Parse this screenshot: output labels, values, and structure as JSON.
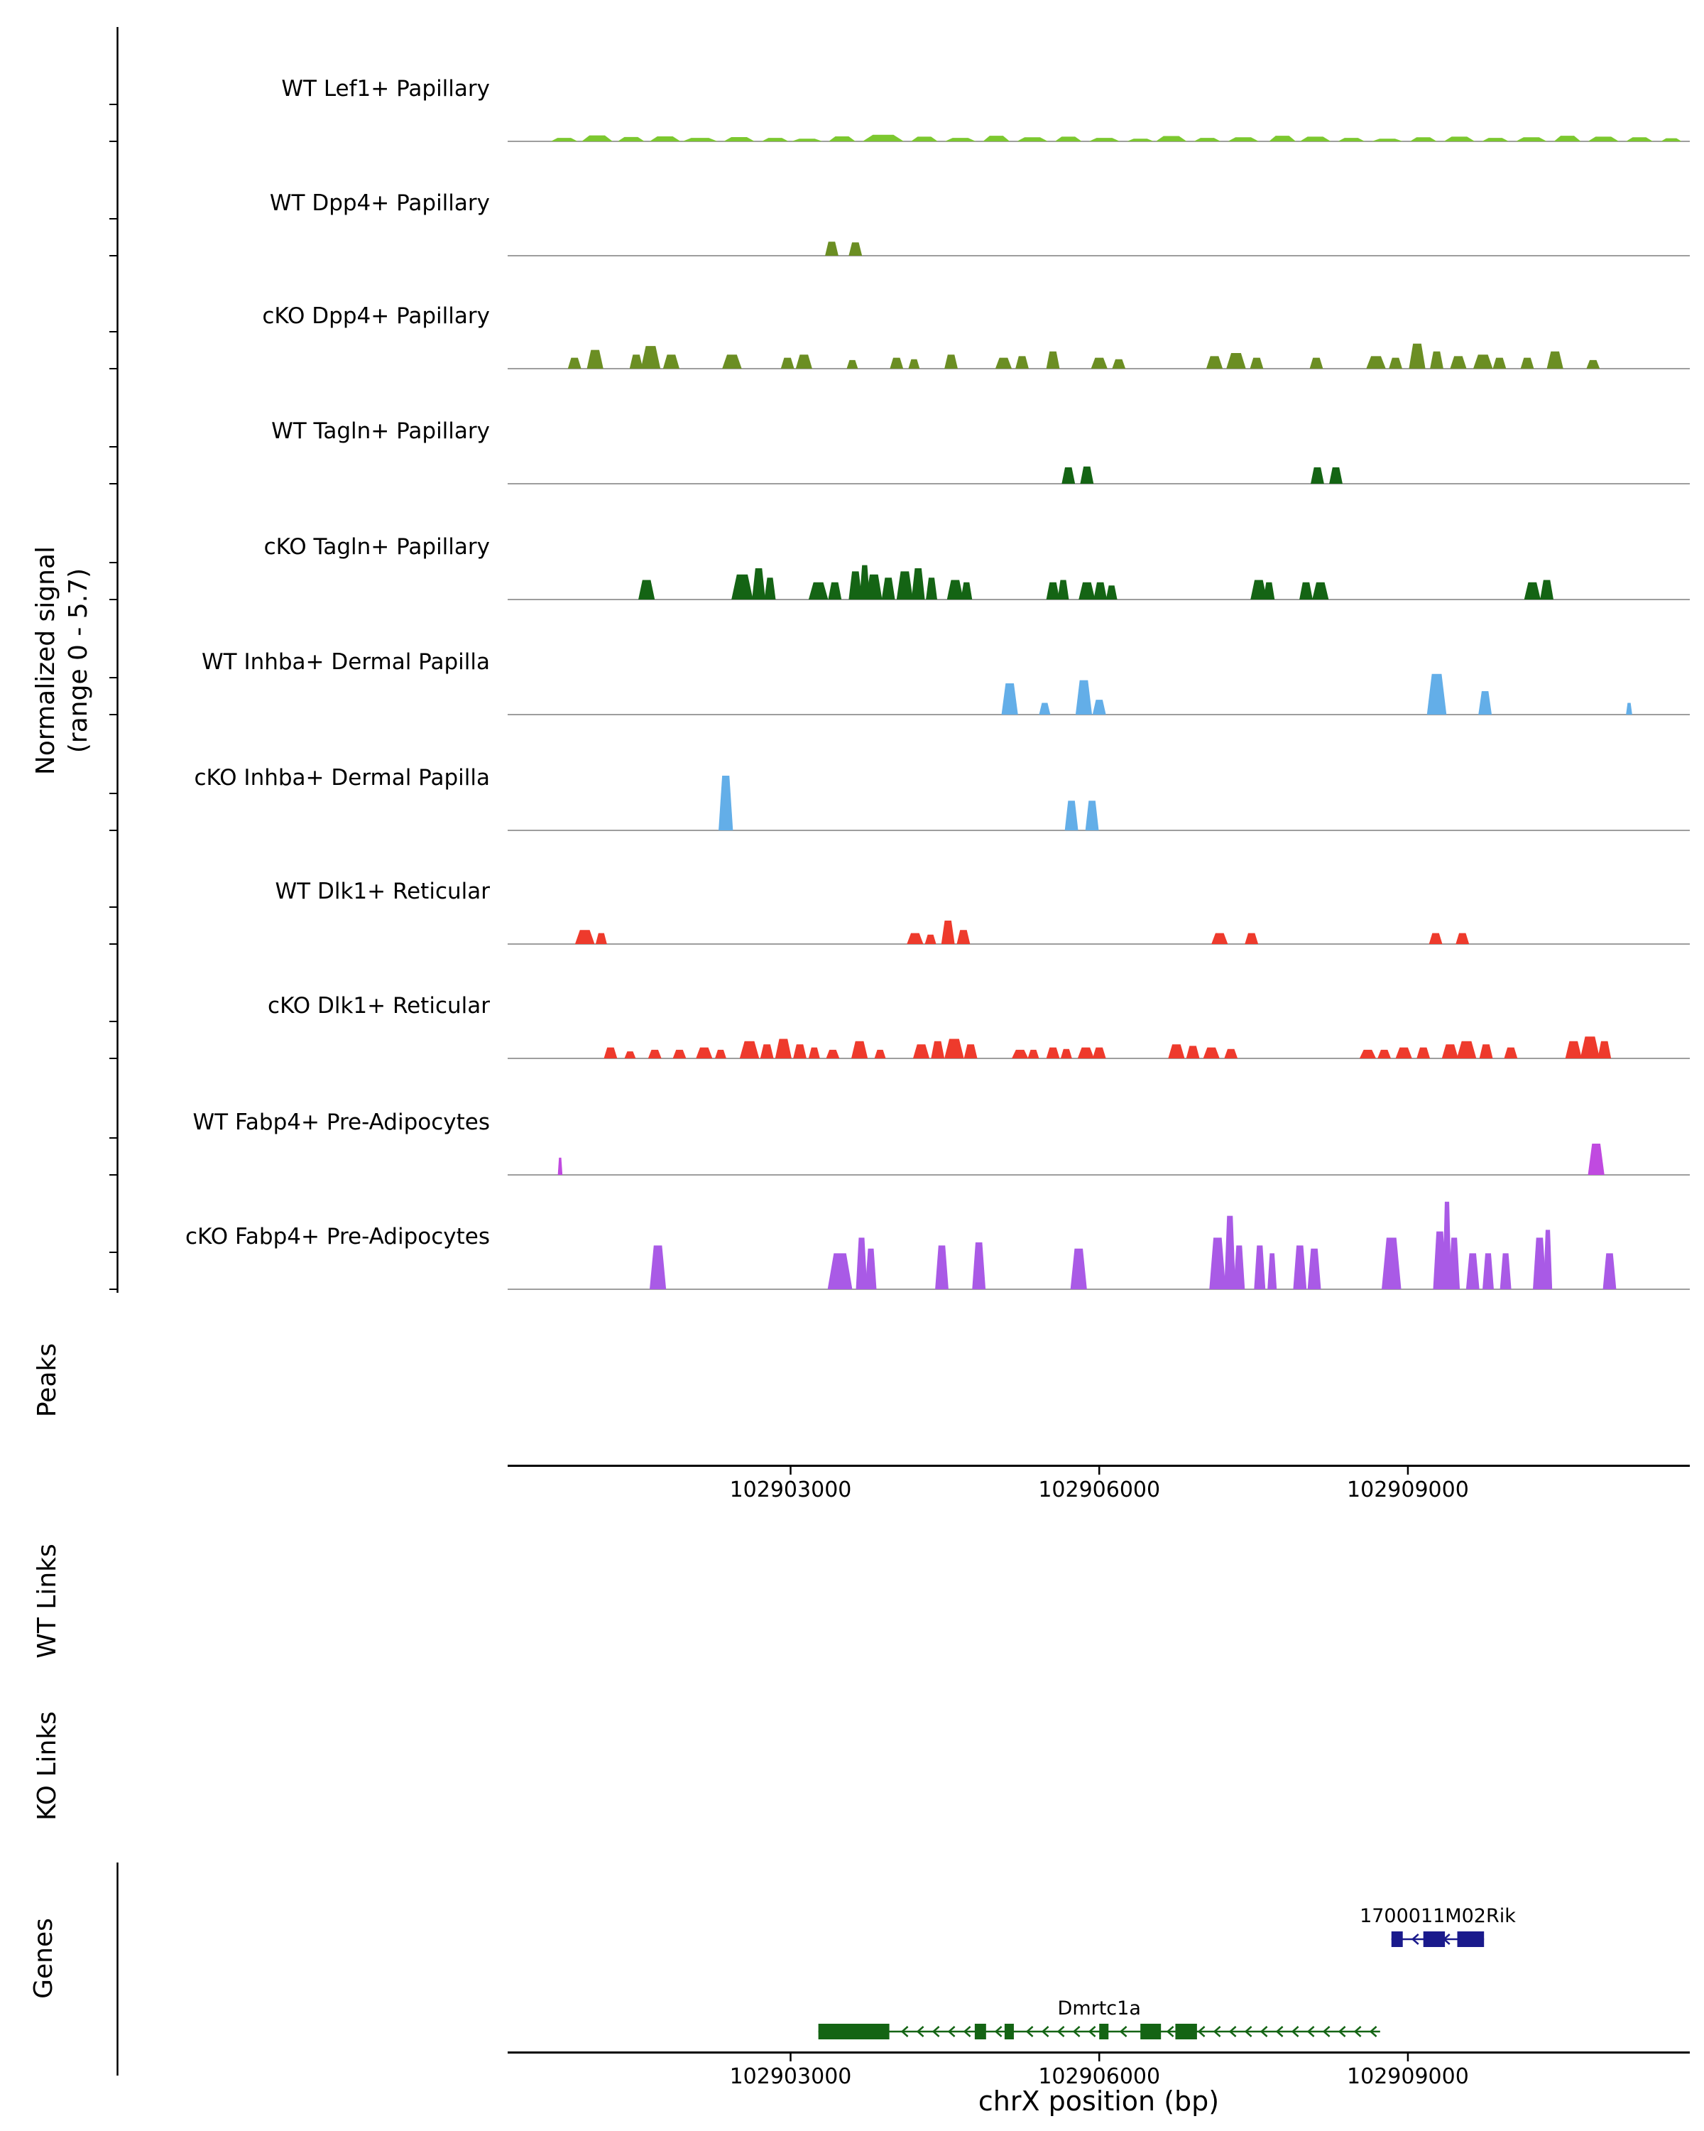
{
  "y_axis": {
    "line1": "Normalized signal",
    "line2": "(range 0 - 5.7)"
  },
  "sections": {
    "peaks": "Peaks",
    "wt_links": "WT Links",
    "ko_links": "KO Links",
    "genes": "Genes"
  },
  "x_axis": {
    "label": "chrX position (bp)"
  },
  "chart_data": {
    "type": "area",
    "title": "",
    "xlabel": "chrX position (bp)",
    "ylabel": "Normalized signal (range 0 - 5.7)",
    "x_range_bp": [
      102900250,
      102911740
    ],
    "x_ticks": [
      102903000,
      102906000,
      102909000
    ],
    "y_range": [
      0,
      5.7
    ],
    "peak_format": "[center_bp, width_bp, height_normalized]",
    "tracks": [
      {
        "label": "WT Lef1+ Papillary",
        "color": "#7cc82f",
        "peaks": [
          [
            102900800,
            260,
            0.22
          ],
          [
            102901120,
            300,
            0.38
          ],
          [
            102901450,
            260,
            0.28
          ],
          [
            102901780,
            300,
            0.32
          ],
          [
            102902120,
            340,
            0.22
          ],
          [
            102902500,
            300,
            0.27
          ],
          [
            102902850,
            260,
            0.22
          ],
          [
            102903160,
            300,
            0.17
          ],
          [
            102903500,
            260,
            0.32
          ],
          [
            102903900,
            400,
            0.42
          ],
          [
            102904300,
            260,
            0.3
          ],
          [
            102904650,
            300,
            0.22
          ],
          [
            102905000,
            260,
            0.36
          ],
          [
            102905350,
            300,
            0.26
          ],
          [
            102905700,
            260,
            0.3
          ],
          [
            102906050,
            300,
            0.22
          ],
          [
            102906400,
            260,
            0.17
          ],
          [
            102906700,
            300,
            0.34
          ],
          [
            102907050,
            260,
            0.22
          ],
          [
            102907400,
            300,
            0.26
          ],
          [
            102907780,
            260,
            0.36
          ],
          [
            102908100,
            300,
            0.3
          ],
          [
            102908450,
            260,
            0.22
          ],
          [
            102908800,
            300,
            0.17
          ],
          [
            102909150,
            260,
            0.26
          ],
          [
            102909500,
            300,
            0.3
          ],
          [
            102909850,
            260,
            0.22
          ],
          [
            102910200,
            300,
            0.26
          ],
          [
            102910550,
            260,
            0.36
          ],
          [
            102910900,
            300,
            0.3
          ],
          [
            102911250,
            260,
            0.26
          ],
          [
            102911560,
            200,
            0.2
          ]
        ]
      },
      {
        "label": "WT Dpp4+ Papillary",
        "color": "#6b8e23",
        "peaks": [
          [
            102903400,
            130,
            0.9
          ],
          [
            102903630,
            130,
            0.85
          ]
        ]
      },
      {
        "label": "cKO Dpp4+ Papillary",
        "color": "#6b8e23",
        "peaks": [
          [
            102900900,
            130,
            0.7
          ],
          [
            102901100,
            160,
            1.2
          ],
          [
            102901500,
            130,
            0.9
          ],
          [
            102901640,
            190,
            1.45
          ],
          [
            102901840,
            160,
            0.9
          ],
          [
            102902430,
            190,
            0.9
          ],
          [
            102902970,
            130,
            0.7
          ],
          [
            102903130,
            160,
            0.9
          ],
          [
            102903600,
            110,
            0.55
          ],
          [
            102904030,
            130,
            0.7
          ],
          [
            102904200,
            110,
            0.6
          ],
          [
            102904560,
            130,
            0.9
          ],
          [
            102905070,
            160,
            0.7
          ],
          [
            102905250,
            130,
            0.8
          ],
          [
            102905550,
            130,
            1.1
          ],
          [
            102906000,
            160,
            0.7
          ],
          [
            102906190,
            130,
            0.6
          ],
          [
            102907120,
            160,
            0.8
          ],
          [
            102907330,
            190,
            1.0
          ],
          [
            102907530,
            130,
            0.7
          ],
          [
            102908110,
            130,
            0.7
          ],
          [
            102908690,
            190,
            0.8
          ],
          [
            102908880,
            130,
            0.7
          ],
          [
            102909090,
            160,
            1.6
          ],
          [
            102909280,
            130,
            1.1
          ],
          [
            102909490,
            160,
            0.8
          ],
          [
            102909730,
            190,
            0.9
          ],
          [
            102909890,
            130,
            0.7
          ],
          [
            102910160,
            130,
            0.7
          ],
          [
            102910430,
            160,
            1.1
          ],
          [
            102910800,
            130,
            0.55
          ]
        ]
      },
      {
        "label": "WT Tagln+ Papillary",
        "color": "#146414",
        "peaks": [
          [
            102905700,
            130,
            1.05
          ],
          [
            102905880,
            130,
            1.1
          ],
          [
            102908120,
            130,
            1.05
          ],
          [
            102908300,
            130,
            1.05
          ]
        ]
      },
      {
        "label": "cKO Tagln+ Papillary",
        "color": "#146414",
        "peaks": [
          [
            102901600,
            160,
            1.25
          ],
          [
            102902530,
            210,
            1.6
          ],
          [
            102902690,
            130,
            2.0
          ],
          [
            102902800,
            110,
            1.4
          ],
          [
            102903270,
            190,
            1.1
          ],
          [
            102903430,
            130,
            1.1
          ],
          [
            102903630,
            130,
            1.8
          ],
          [
            102903720,
            100,
            2.2
          ],
          [
            102903810,
            160,
            1.6
          ],
          [
            102903950,
            130,
            1.4
          ],
          [
            102904110,
            160,
            1.8
          ],
          [
            102904240,
            130,
            2.0
          ],
          [
            102904370,
            110,
            1.4
          ],
          [
            102904600,
            160,
            1.25
          ],
          [
            102904710,
            110,
            1.1
          ],
          [
            102905550,
            130,
            1.1
          ],
          [
            102905650,
            110,
            1.25
          ],
          [
            102905880,
            160,
            1.1
          ],
          [
            102906010,
            130,
            1.1
          ],
          [
            102906120,
            110,
            0.9
          ],
          [
            102907550,
            160,
            1.25
          ],
          [
            102907650,
            110,
            1.1
          ],
          [
            102908010,
            130,
            1.1
          ],
          [
            102908150,
            160,
            1.1
          ],
          [
            102910210,
            160,
            1.1
          ],
          [
            102910350,
            130,
            1.25
          ]
        ]
      },
      {
        "label": "WT Inhba+ Dermal Papilla",
        "color": "#63aee8",
        "peaks": [
          [
            102905130,
            160,
            2.0
          ],
          [
            102905470,
            110,
            0.75
          ],
          [
            102905850,
            160,
            2.2
          ],
          [
            102906000,
            130,
            0.95
          ],
          [
            102909280,
            190,
            2.6
          ],
          [
            102909750,
            130,
            1.5
          ],
          [
            102911150,
            60,
            0.75
          ]
        ]
      },
      {
        "label": "cKO Inhba+ Dermal Papilla",
        "color": "#63aee8",
        "peaks": [
          [
            102902370,
            140,
            3.5
          ],
          [
            102905730,
            130,
            1.9
          ],
          [
            102905930,
            130,
            1.9
          ]
        ]
      },
      {
        "label": "WT Dlk1+ Reticular",
        "color": "#ee3a2c",
        "peaks": [
          [
            102901000,
            190,
            0.9
          ],
          [
            102901160,
            110,
            0.7
          ],
          [
            102904210,
            160,
            0.7
          ],
          [
            102904360,
            110,
            0.6
          ],
          [
            102904530,
            130,
            1.5
          ],
          [
            102904680,
            130,
            0.9
          ],
          [
            102907170,
            160,
            0.7
          ],
          [
            102907480,
            130,
            0.7
          ],
          [
            102909270,
            130,
            0.7
          ],
          [
            102909530,
            130,
            0.7
          ]
        ]
      },
      {
        "label": "cKO Dlk1+ Reticular",
        "color": "#ee3a2c",
        "peaks": [
          [
            102901250,
            130,
            0.7
          ],
          [
            102901440,
            110,
            0.45
          ],
          [
            102901680,
            130,
            0.55
          ],
          [
            102901920,
            130,
            0.55
          ],
          [
            102902160,
            160,
            0.7
          ],
          [
            102902320,
            110,
            0.55
          ],
          [
            102902600,
            190,
            1.1
          ],
          [
            102902770,
            130,
            0.9
          ],
          [
            102902930,
            160,
            1.25
          ],
          [
            102903090,
            130,
            0.9
          ],
          [
            102903230,
            110,
            0.7
          ],
          [
            102903410,
            130,
            0.55
          ],
          [
            102903670,
            160,
            1.1
          ],
          [
            102903870,
            110,
            0.55
          ],
          [
            102904270,
            160,
            0.9
          ],
          [
            102904430,
            130,
            1.1
          ],
          [
            102904590,
            190,
            1.25
          ],
          [
            102904750,
            130,
            0.9
          ],
          [
            102905230,
            160,
            0.55
          ],
          [
            102905360,
            110,
            0.55
          ],
          [
            102905550,
            130,
            0.7
          ],
          [
            102905680,
            110,
            0.6
          ],
          [
            102905870,
            160,
            0.7
          ],
          [
            102906000,
            130,
            0.7
          ],
          [
            102906750,
            160,
            0.9
          ],
          [
            102906910,
            130,
            0.8
          ],
          [
            102907090,
            160,
            0.7
          ],
          [
            102907280,
            130,
            0.6
          ],
          [
            102908610,
            160,
            0.55
          ],
          [
            102908770,
            130,
            0.55
          ],
          [
            102908960,
            160,
            0.7
          ],
          [
            102909150,
            130,
            0.7
          ],
          [
            102909410,
            160,
            0.9
          ],
          [
            102909570,
            190,
            1.1
          ],
          [
            102909760,
            130,
            0.9
          ],
          [
            102910000,
            130,
            0.7
          ],
          [
            102910610,
            160,
            1.1
          ],
          [
            102910770,
            190,
            1.4
          ],
          [
            102910910,
            130,
            1.1
          ]
        ]
      },
      {
        "label": "WT Fabp4+ Pre-Adipocytes",
        "color": "#c04ae0",
        "peaks": [
          [
            102900760,
            45,
            1.1
          ],
          [
            102910830,
            160,
            2.0
          ]
        ]
      },
      {
        "label": "cKO Fabp4+ Pre-Adipocytes",
        "color": "#a95ae6",
        "peaks": [
          [
            102901710,
            160,
            2.8
          ],
          [
            102903480,
            240,
            2.3
          ],
          [
            102903690,
            110,
            3.3
          ],
          [
            102903780,
            110,
            2.6
          ],
          [
            102904470,
            130,
            2.8
          ],
          [
            102904830,
            130,
            3.0
          ],
          [
            102905800,
            160,
            2.6
          ],
          [
            102907150,
            160,
            3.3
          ],
          [
            102907270,
            110,
            4.7
          ],
          [
            102907360,
            110,
            2.8
          ],
          [
            102907560,
            110,
            2.8
          ],
          [
            102907680,
            90,
            2.3
          ],
          [
            102907950,
            130,
            2.8
          ],
          [
            102908090,
            130,
            2.6
          ],
          [
            102908840,
            190,
            3.3
          ],
          [
            102909310,
            130,
            3.7
          ],
          [
            102909380,
            85,
            5.6
          ],
          [
            102909450,
            110,
            3.3
          ],
          [
            102909630,
            130,
            2.3
          ],
          [
            102909780,
            110,
            2.3
          ],
          [
            102909950,
            110,
            2.3
          ],
          [
            102910280,
            130,
            3.3
          ],
          [
            102910360,
            85,
            3.8
          ],
          [
            102910960,
            130,
            2.3
          ]
        ]
      }
    ],
    "genes": [
      {
        "name": "1700011M02Rik",
        "color": "#1a1a8c",
        "strand": "-",
        "span": [
          102908840,
          102909740
        ],
        "exons": [
          [
            102908840,
            102908950
          ],
          [
            102909150,
            102909360
          ],
          [
            102909480,
            102909740
          ]
        ]
      },
      {
        "name": "Dmrtc1a",
        "color": "#146414",
        "strand": "-",
        "span": [
          102903270,
          102908730
        ],
        "exons": [
          [
            102903270,
            102903960
          ],
          [
            102904790,
            102904900
          ],
          [
            102905080,
            102905170
          ],
          [
            102906000,
            102906090
          ],
          [
            102906400,
            102906600
          ],
          [
            102906740,
            102906950
          ]
        ]
      }
    ]
  }
}
